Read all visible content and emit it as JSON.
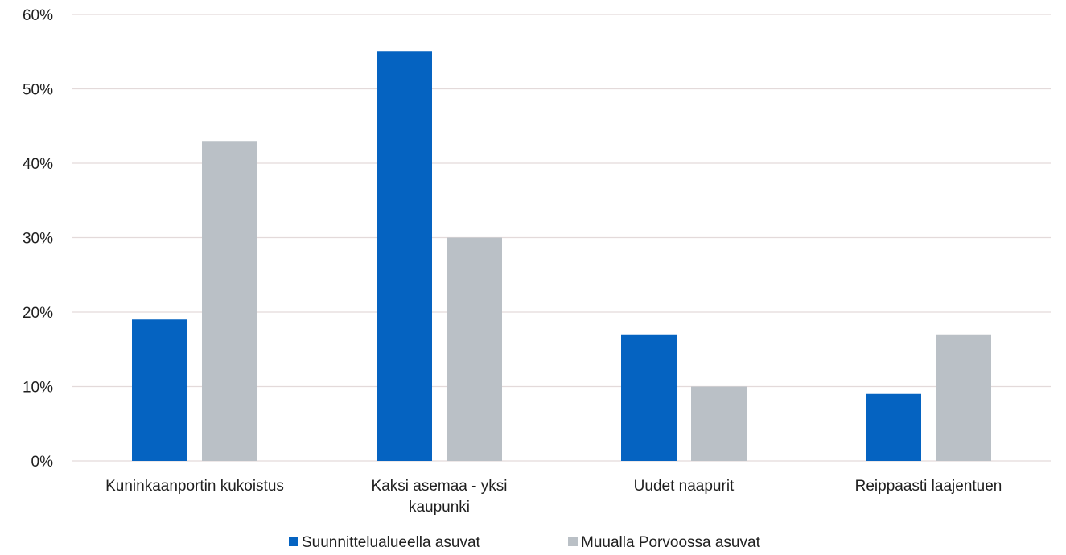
{
  "chart_data": {
    "type": "bar",
    "categories": [
      [
        "Kuninkaanportin kukoistus"
      ],
      [
        "Kaksi asemaa - yksi",
        "kaupunki"
      ],
      [
        "Uudet naapurit"
      ],
      [
        "Reippaasti laajentuen"
      ]
    ],
    "series": [
      {
        "name": "Suunnittelualueella asuvat",
        "values": [
          19,
          55,
          17,
          9
        ],
        "color": "#0563C1"
      },
      {
        "name": "Muualla Porvoossa asuvat",
        "values": [
          43,
          30,
          10,
          17
        ],
        "color": "#BAC0C6"
      }
    ],
    "ylim": [
      0,
      60
    ],
    "yticks": [
      0,
      10,
      20,
      30,
      40,
      50,
      60
    ],
    "ytick_suffix": "%",
    "grid": true,
    "gridline_color": "#E3DADA",
    "legend_position": "bottom-center"
  }
}
